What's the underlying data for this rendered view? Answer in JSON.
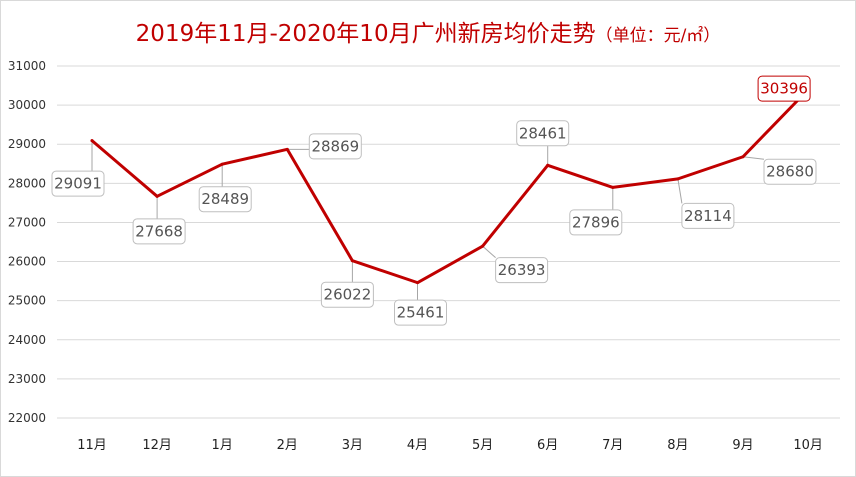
{
  "title": {
    "main": "2019年11月-2020年10月广州新房均价走势",
    "unit": "（单位：元/㎡）"
  },
  "colors": {
    "line": "#c00000",
    "grid": "#d9d9d9",
    "label_border": "#bfbfbf",
    "highlight": "#c00000"
  },
  "chart_data": {
    "type": "line",
    "title": "2019年11月-2020年10月广州新房均价走势（单位：元/㎡）",
    "categories": [
      "11月",
      "12月",
      "1月",
      "2月",
      "3月",
      "4月",
      "5月",
      "6月",
      "7月",
      "8月",
      "9月",
      "10月"
    ],
    "values": [
      29091,
      27668,
      28489,
      28869,
      26022,
      25461,
      26393,
      28461,
      27896,
      28114,
      28680,
      30396
    ],
    "labels": [
      "29091",
      "27668",
      "28489",
      "28869",
      "26022",
      "25461",
      "26393",
      "28461",
      "27896",
      "28114",
      "28680",
      "30396"
    ],
    "ylim": [
      22000,
      31000
    ],
    "yticks": [
      "22000",
      "23000",
      "24000",
      "25000",
      "26000",
      "27000",
      "28000",
      "29000",
      "30000",
      "31000"
    ],
    "grid": true,
    "highlight_index": 11
  }
}
